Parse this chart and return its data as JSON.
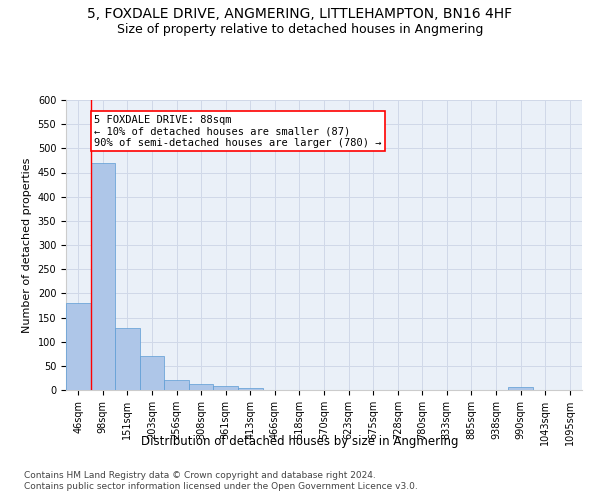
{
  "title": "5, FOXDALE DRIVE, ANGMERING, LITTLEHAMPTON, BN16 4HF",
  "subtitle": "Size of property relative to detached houses in Angmering",
  "xlabel": "Distribution of detached houses by size in Angmering",
  "ylabel": "Number of detached properties",
  "categories": [
    "46sqm",
    "98sqm",
    "151sqm",
    "203sqm",
    "256sqm",
    "308sqm",
    "361sqm",
    "413sqm",
    "466sqm",
    "518sqm",
    "570sqm",
    "623sqm",
    "675sqm",
    "728sqm",
    "780sqm",
    "833sqm",
    "885sqm",
    "938sqm",
    "990sqm",
    "1043sqm",
    "1095sqm"
  ],
  "values": [
    180,
    470,
    128,
    70,
    20,
    12,
    8,
    5,
    0,
    0,
    0,
    0,
    0,
    0,
    0,
    0,
    0,
    0,
    7,
    0,
    0
  ],
  "bar_color": "#aec6e8",
  "bar_edge_color": "#5b9bd5",
  "annotation_box_text": "5 FOXDALE DRIVE: 88sqm\n← 10% of detached houses are smaller (87)\n90% of semi-detached houses are larger (780) →",
  "annotation_box_color": "white",
  "annotation_box_edge_color": "red",
  "vline_color": "red",
  "ylim": [
    0,
    600
  ],
  "yticks": [
    0,
    50,
    100,
    150,
    200,
    250,
    300,
    350,
    400,
    450,
    500,
    550,
    600
  ],
  "grid_color": "#d0d8e8",
  "background_color": "#eaf0f8",
  "footer_line1": "Contains HM Land Registry data © Crown copyright and database right 2024.",
  "footer_line2": "Contains public sector information licensed under the Open Government Licence v3.0.",
  "title_fontsize": 10,
  "subtitle_fontsize": 9,
  "xlabel_fontsize": 8.5,
  "ylabel_fontsize": 8,
  "tick_fontsize": 7,
  "footer_fontsize": 6.5,
  "annotation_fontsize": 7.5
}
